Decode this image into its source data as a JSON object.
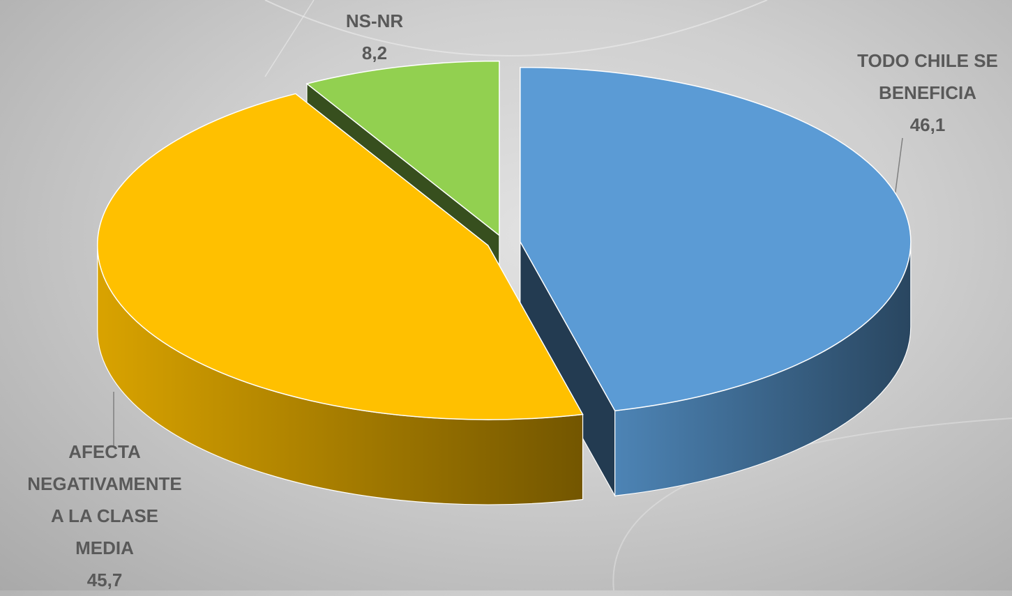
{
  "chart_data": {
    "type": "pie3d",
    "categories": [
      "TODO CHILE SE BENEFICIA",
      "AFECTA NEGATIVAMENTE A LA CLASE MEDIA",
      "NS-NR"
    ],
    "values": [
      46.1,
      45.7,
      8.2
    ],
    "value_labels": [
      "46,1",
      "45,7",
      "8,2"
    ],
    "colors": [
      "#5b9bd5",
      "#ffc000",
      "#92d050"
    ]
  }
}
